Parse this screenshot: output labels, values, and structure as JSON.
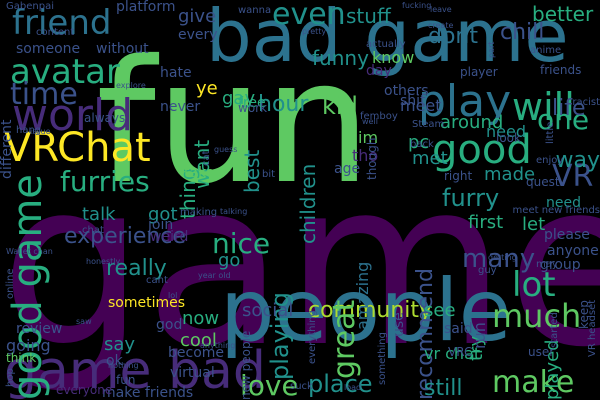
{
  "canvas": {
    "background": "#000000",
    "palette": {
      "dark_purple": "#440154",
      "purple": "#472c7a",
      "blue": "#3b528b",
      "steel": "#2c728e",
      "teal": "#21918c",
      "green_teal": "#28ae80",
      "green": "#5ec962",
      "light_green": "#addc30",
      "yellow": "#fde725"
    }
  },
  "words": [
    {
      "text": "game",
      "color": "#440154"
    },
    {
      "text": "fun",
      "color": "#5ec962"
    },
    {
      "text": "people",
      "color": "#2c728e"
    },
    {
      "text": "bad game",
      "color": "#2c728e"
    },
    {
      "text": "game bad",
      "color": "#472c7a"
    },
    {
      "text": "VRChat",
      "color": "#fde725"
    },
    {
      "text": "world",
      "color": "#472c7a"
    },
    {
      "text": "friend",
      "color": "#2c728e"
    },
    {
      "text": "avatar",
      "color": "#28ae80"
    },
    {
      "text": "time",
      "color": "#3b528b"
    },
    {
      "text": "play",
      "color": "#2c728e"
    },
    {
      "text": "good",
      "color": "#28ae80"
    },
    {
      "text": "good game",
      "color": "#28ae80"
    },
    {
      "text": "furries",
      "color": "#28ae80"
    },
    {
      "text": "even",
      "color": "#21918c"
    },
    {
      "text": "will",
      "color": "#28ae80"
    },
    {
      "text": "one",
      "color": "#28ae80"
    },
    {
      "text": "VR",
      "color": "#3b528b"
    },
    {
      "text": "make",
      "color": "#5ec962"
    },
    {
      "text": "love",
      "color": "#5ec962"
    },
    {
      "text": "lot",
      "color": "#28ae80"
    },
    {
      "text": "much",
      "color": "#5ec962"
    },
    {
      "text": "many",
      "color": "#3b528b"
    },
    {
      "text": "community",
      "color": "#addc30"
    },
    {
      "text": "playing",
      "color": "#21918c"
    },
    {
      "text": "nice",
      "color": "#28ae80"
    },
    {
      "text": "great",
      "color": "#5ec962"
    },
    {
      "text": "really",
      "color": "#21918c"
    },
    {
      "text": "place",
      "color": "#21918c"
    },
    {
      "text": "furry",
      "color": "#21918c"
    },
    {
      "text": "way",
      "color": "#21918c"
    },
    {
      "text": "life",
      "color": "#3b528b"
    },
    {
      "text": "recommend",
      "color": "#3b528b"
    },
    {
      "text": "experience",
      "color": "#3b528b"
    },
    {
      "text": "still",
      "color": "#21918c"
    },
    {
      "text": "funny",
      "color": "#21918c"
    },
    {
      "text": "stuff",
      "color": "#21918c"
    },
    {
      "text": "dont",
      "color": "#2c728e"
    },
    {
      "text": "chill",
      "color": "#3b528b"
    },
    {
      "text": "better",
      "color": "#28ae80"
    },
    {
      "text": "hour",
      "color": "#21918c"
    },
    {
      "text": "kid",
      "color": "#5ec962"
    },
    {
      "text": "best",
      "color": "#21918c"
    },
    {
      "text": "children",
      "color": "#21918c"
    },
    {
      "text": "thing",
      "color": "#28ae80"
    },
    {
      "text": "want",
      "color": "#28ae80"
    },
    {
      "text": "gay",
      "color": "#28ae80"
    },
    {
      "text": "meet",
      "color": "#3b528b"
    },
    {
      "text": "pc",
      "color": "#28ae80"
    },
    {
      "text": "around",
      "color": "#28ae80"
    },
    {
      "text": "met",
      "color": "#21918c"
    },
    {
      "text": "need",
      "color": "#21918c"
    },
    {
      "text": "made",
      "color": "#21918c"
    },
    {
      "text": "first",
      "color": "#28ae80"
    },
    {
      "text": "let",
      "color": "#28ae80"
    },
    {
      "text": "see",
      "color": "#28ae80"
    },
    {
      "text": "try",
      "color": "#28ae80"
    },
    {
      "text": "played",
      "color": "#28ae80"
    },
    {
      "text": "say",
      "color": "#21918c"
    },
    {
      "text": "cool",
      "color": "#5ec962"
    },
    {
      "text": "now",
      "color": "#28ae80"
    },
    {
      "text": "got",
      "color": "#21918c"
    },
    {
      "text": "talk",
      "color": "#21918c"
    },
    {
      "text": "go",
      "color": "#21918c"
    },
    {
      "text": "social",
      "color": "#3b528b"
    },
    {
      "text": "amazing",
      "color": "#2c728e"
    },
    {
      "text": "give",
      "color": "#3b528b"
    },
    {
      "text": "platform",
      "color": "#3b528b"
    },
    {
      "text": "every",
      "color": "#3b528b"
    },
    {
      "text": "without",
      "color": "#3b528b"
    },
    {
      "text": "hate",
      "color": "#3b528b"
    },
    {
      "text": "someone",
      "color": "#3b528b"
    },
    {
      "text": "free",
      "color": "#28ae80"
    },
    {
      "text": "take",
      "color": "#5ec962"
    },
    {
      "text": "ye",
      "color": "#fde725"
    },
    {
      "text": "im",
      "color": "#5ec962"
    },
    {
      "text": "tho",
      "color": "#472c7a"
    },
    {
      "text": "age",
      "color": "#3b528b"
    },
    {
      "text": "know",
      "color": "#5ec962"
    },
    {
      "text": "day",
      "color": "#472c7a"
    },
    {
      "text": "others",
      "color": "#3b528b"
    },
    {
      "text": "shit",
      "color": "#3b528b"
    },
    {
      "text": "though",
      "color": "#3b528b"
    },
    {
      "text": "need",
      "color": "#21918c"
    },
    {
      "text": "please",
      "color": "#3b528b"
    },
    {
      "text": "anyone",
      "color": "#3b528b"
    },
    {
      "text": "group",
      "color": "#3b528b"
    },
    {
      "text": "run",
      "color": "#3b528b"
    },
    {
      "text": "vr chat",
      "color": "#28ae80"
    },
    {
      "text": "VRC",
      "color": "#3b528b"
    },
    {
      "text": "said",
      "color": "#3b528b"
    },
    {
      "text": "use",
      "color": "#3b528b"
    },
    {
      "text": "sometimes",
      "color": "#fde725"
    },
    {
      "text": "review",
      "color": "#3b528b"
    },
    {
      "text": "going",
      "color": "#3b528b"
    },
    {
      "text": "think",
      "color": "#5ec962"
    },
    {
      "text": "make friends",
      "color": "#3b528b"
    },
    {
      "text": "everyone",
      "color": "#472c7a"
    },
    {
      "text": "fun",
      "color": "#3b528b"
    },
    {
      "text": "ok",
      "color": "#3b528b"
    },
    {
      "text": "god",
      "color": "#3b528b"
    },
    {
      "text": "become",
      "color": "#3b528b"
    },
    {
      "text": "virtual",
      "color": "#3b528b"
    },
    {
      "text": "weird",
      "color": "#472c7a"
    },
    {
      "text": "join",
      "color": "#3b528b"
    },
    {
      "text": "never",
      "color": "#3b528b"
    },
    {
      "text": "work",
      "color": "#3b528b"
    },
    {
      "text": "player",
      "color": "#3b528b"
    },
    {
      "text": "anime",
      "color": "#3b528b"
    },
    {
      "text": "friends",
      "color": "#3b528b"
    },
    {
      "text": "racist",
      "color": "#3b528b"
    },
    {
      "text": "keep",
      "color": "#3b528b"
    },
    {
      "text": "user",
      "color": "#3b528b"
    },
    {
      "text": "may",
      "color": "#3b528b"
    },
    {
      "text": "right",
      "color": "#3b528b"
    },
    {
      "text": "quest",
      "color": "#3b528b"
    },
    {
      "text": "look",
      "color": "#3b528b"
    },
    {
      "text": "Steam",
      "color": "#3b528b"
    },
    {
      "text": "making",
      "color": "#3b528b"
    },
    {
      "text": "chat",
      "color": "#3b528b"
    },
    {
      "text": "always",
      "color": "#3b528b"
    },
    {
      "text": "hang",
      "color": "#3b528b"
    },
    {
      "text": "different",
      "color": "#3b528b"
    },
    {
      "text": "enjoy",
      "color": "#3b528b"
    },
    {
      "text": "guy",
      "color": "#3b528b"
    },
    {
      "text": "cant",
      "color": "#3b528b"
    },
    {
      "text": "suck",
      "color": "#3b528b"
    },
    {
      "text": "started",
      "color": "#3b528b"
    },
    {
      "text": "VR headset",
      "color": "#3b528b"
    },
    {
      "text": "meet new friends",
      "color": "#3b528b"
    },
    {
      "text": "Gabenpai",
      "color": "#3b528b"
    },
    {
      "text": "wanna",
      "color": "#3b528b"
    },
    {
      "text": "fucking",
      "color": "#3b528b"
    },
    {
      "text": "leave",
      "color": "#3b528b"
    },
    {
      "text": "create",
      "color": "#3b528b"
    },
    {
      "text": "actually",
      "color": "#3b528b"
    },
    {
      "text": "pretty",
      "color": "#3b528b"
    },
    {
      "text": "content",
      "color": "#3b528b"
    },
    {
      "text": "cat",
      "color": "#3b528b"
    },
    {
      "text": "femboy",
      "color": "#3b528b"
    },
    {
      "text": "well",
      "color": "#3b528b"
    },
    {
      "text": "back",
      "color": "#3b528b"
    },
    {
      "text": "bit",
      "color": "#3b528b"
    },
    {
      "text": "getting",
      "color": "#3b528b"
    },
    {
      "text": "talking",
      "color": "#3b528b"
    },
    {
      "text": "honestly",
      "color": "#3b528b"
    },
    {
      "text": "lol",
      "color": "#3b528b"
    },
    {
      "text": "saw",
      "color": "#3b528b"
    },
    {
      "text": "nothing",
      "color": "#3b528b"
    },
    {
      "text": "load",
      "color": "#3b528b"
    },
    {
      "text": "online",
      "color": "#3b528b"
    },
    {
      "text": "Wallet chan",
      "color": "#3b528b"
    },
    {
      "text": "guess",
      "color": "#3b528b"
    },
    {
      "text": "explore",
      "color": "#3b528b"
    },
    {
      "text": "issue",
      "color": "#3b528b"
    },
    {
      "text": "hop",
      "color": "#3b528b"
    },
    {
      "text": "new people",
      "color": "#3b528b"
    },
    {
      "text": "year old",
      "color": "#3b528b"
    },
    {
      "text": "everything",
      "color": "#3b528b"
    },
    {
      "text": "something",
      "color": "#3b528b"
    },
    {
      "text": "anything",
      "color": "#3b528b"
    },
    {
      "text": "little",
      "color": "#3b528b"
    },
    {
      "text": "part",
      "color": "#3b528b"
    },
    {
      "text": "degenerate",
      "color": "#3b528b"
    }
  ]
}
